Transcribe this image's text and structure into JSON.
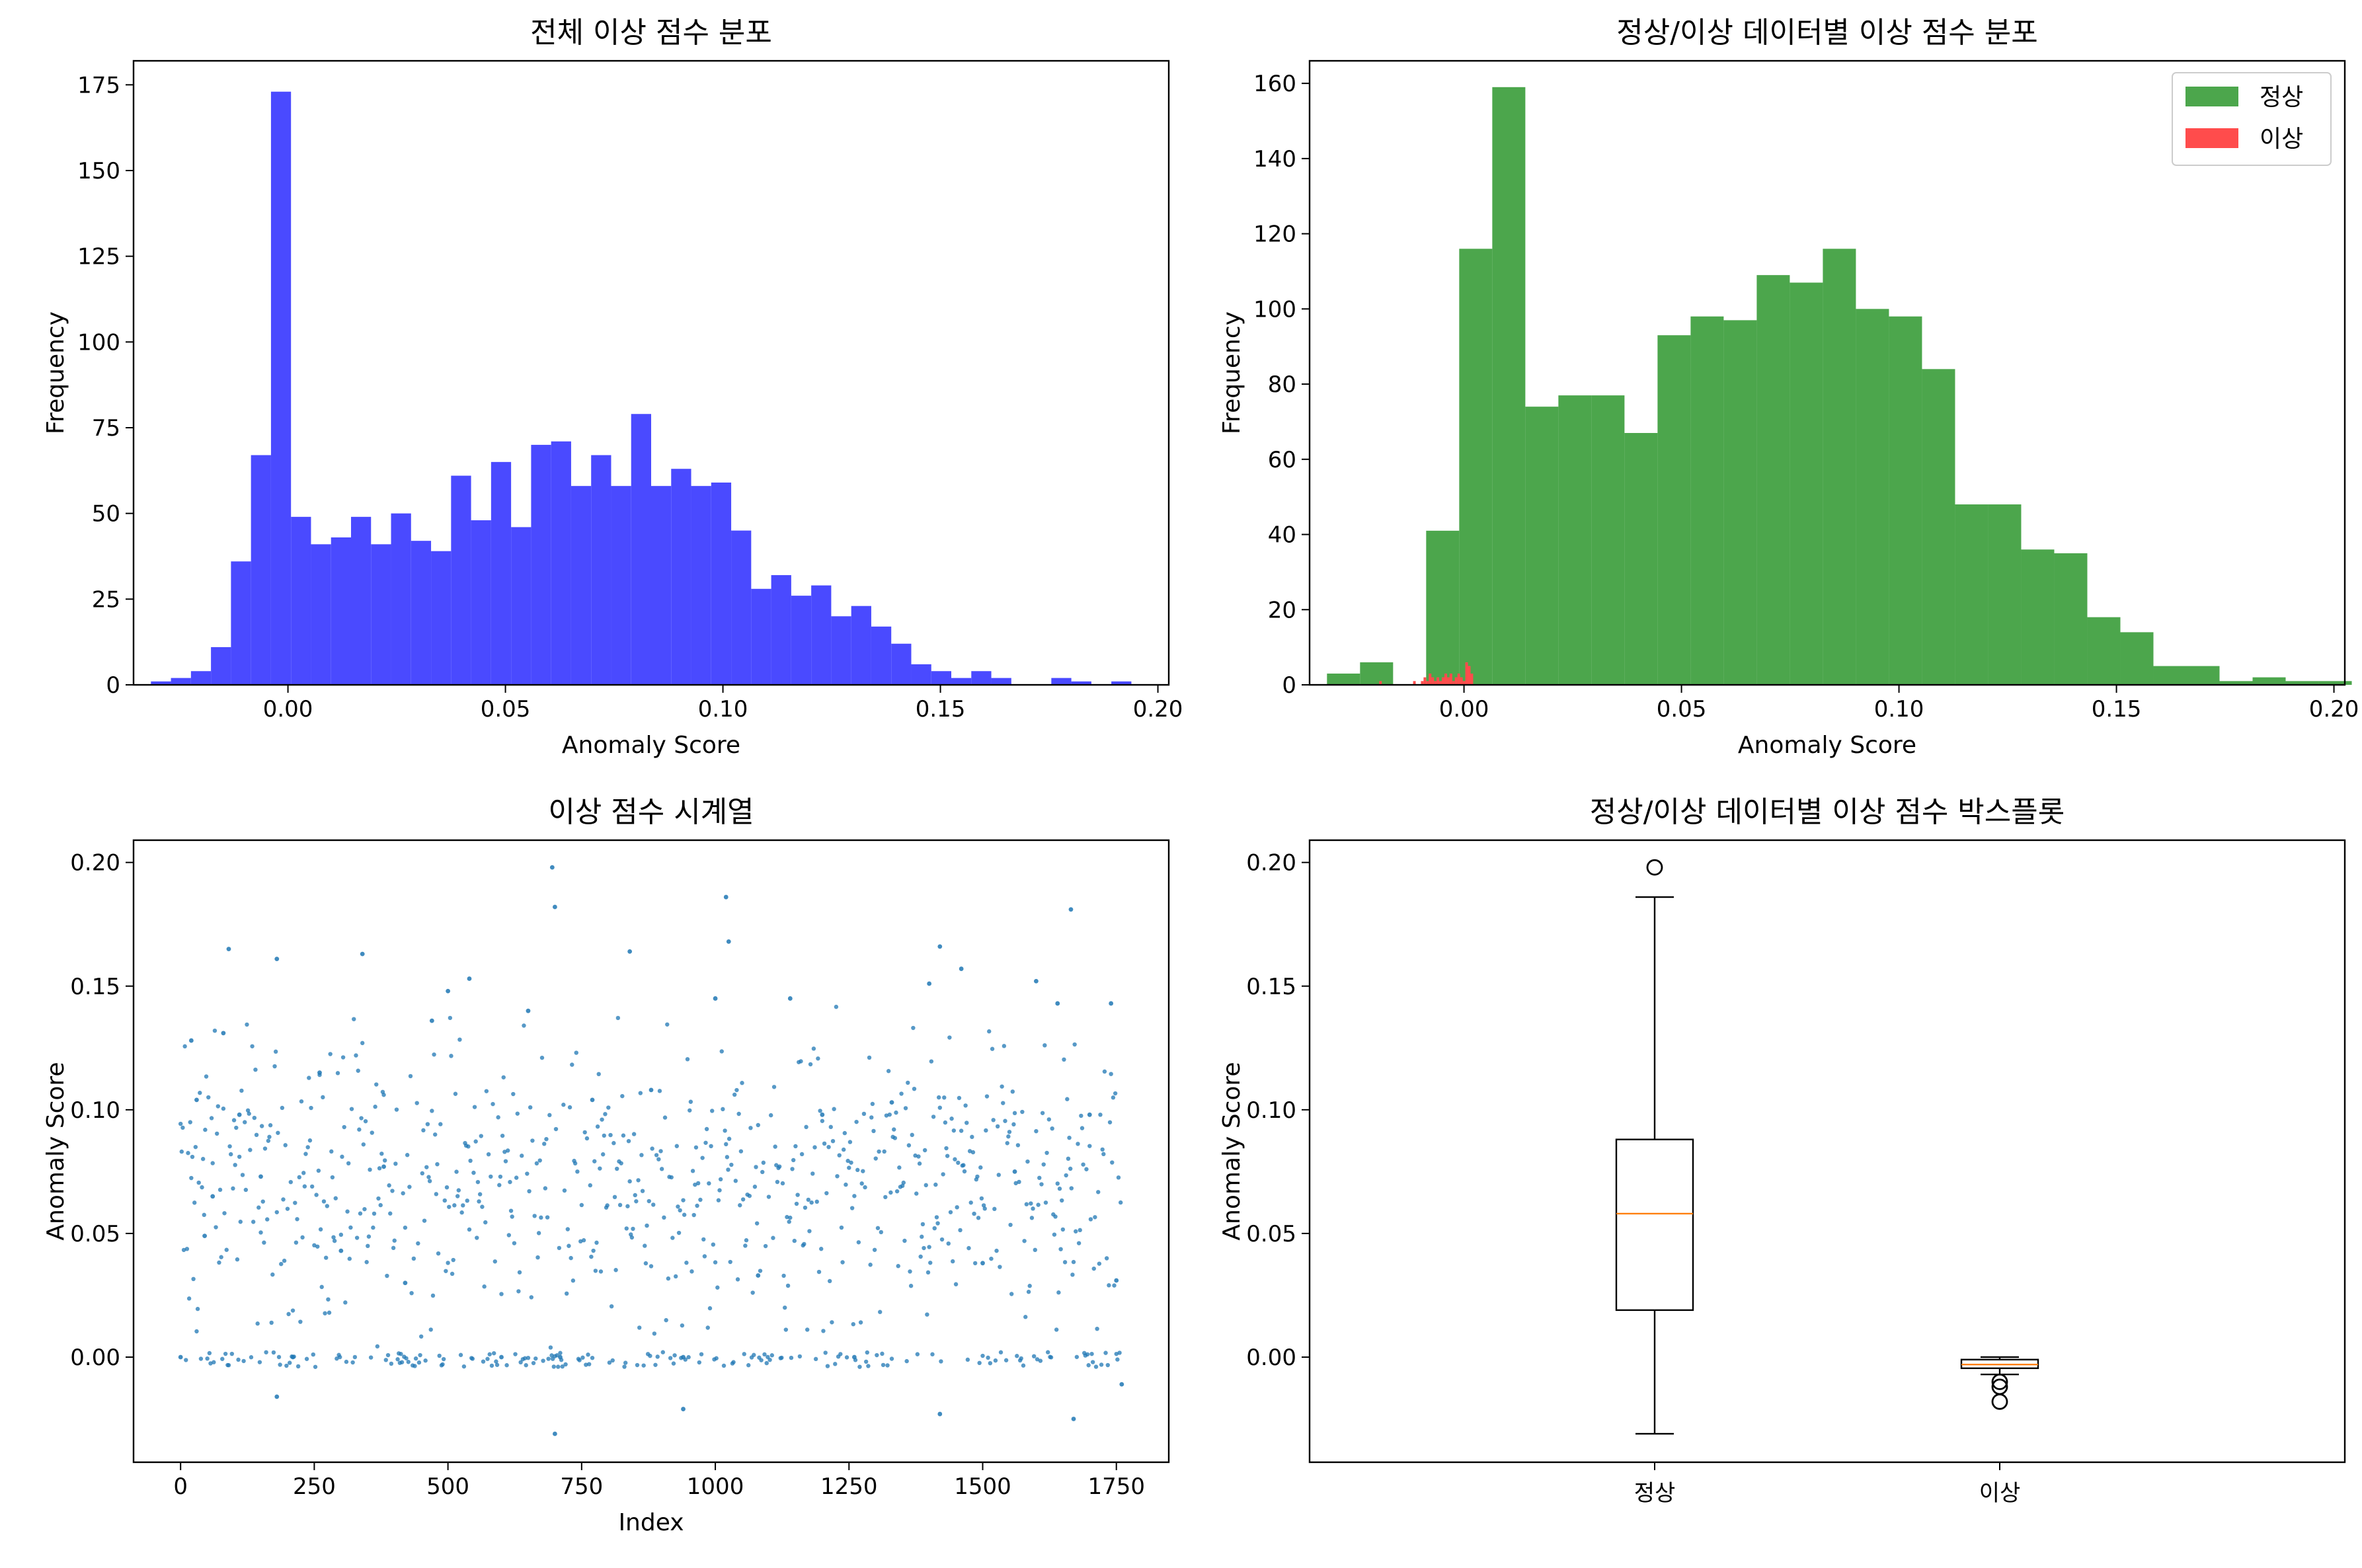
{
  "chart_data": [
    {
      "type": "bar",
      "title": "전체 이상 점수 분포",
      "xlabel": "Anomaly Score",
      "ylabel": "Frequency",
      "xlim": [
        -0.0355,
        0.2025
      ],
      "ylim": [
        0,
        182
      ],
      "xticks": [
        0.0,
        0.05,
        0.1,
        0.15,
        0.2
      ],
      "xtick_labels": [
        "0.00",
        "0.05",
        "0.10",
        "0.15",
        "0.20"
      ],
      "yticks": [
        0,
        25,
        50,
        75,
        100,
        125,
        150,
        175
      ],
      "ytick_labels": [
        "0",
        "25",
        "50",
        "75",
        "100",
        "125",
        "150",
        "175"
      ],
      "grid": false,
      "series": [
        {
          "color": "#4a4aff",
          "bin_start": -0.0315,
          "bin_width": 0.0046,
          "counts": [
            1,
            2,
            4,
            11,
            36,
            67,
            173,
            49,
            41,
            43,
            49,
            41,
            50,
            42,
            39,
            61,
            48,
            65,
            46,
            70,
            71,
            58,
            67,
            58,
            79,
            58,
            63,
            58,
            59,
            45,
            28,
            32,
            26,
            29,
            20,
            23,
            17,
            12,
            6,
            4,
            2,
            4,
            2,
            0,
            0,
            2,
            1,
            0,
            1
          ]
        }
      ]
    },
    {
      "type": "bar",
      "title": "정상/이상 데이터별 이상 점수 분포",
      "xlabel": "Anomaly Score",
      "ylabel": "Frequency",
      "xlim": [
        -0.0355,
        0.2025
      ],
      "ylim": [
        0,
        166
      ],
      "xticks": [
        0.0,
        0.05,
        0.1,
        0.15,
        0.2
      ],
      "xtick_labels": [
        "0.00",
        "0.05",
        "0.10",
        "0.15",
        "0.20"
      ],
      "yticks": [
        0,
        20,
        40,
        60,
        80,
        100,
        120,
        140,
        160
      ],
      "ytick_labels": [
        "0",
        "20",
        "40",
        "60",
        "80",
        "100",
        "120",
        "140",
        "160"
      ],
      "grid": false,
      "legend": "top-right",
      "series": [
        {
          "name": "정상",
          "color": "#4ca64c",
          "bin_start": -0.0315,
          "bin_width": 0.0076,
          "counts": [
            3,
            6,
            0,
            41,
            116,
            159,
            74,
            77,
            77,
            67,
            93,
            98,
            97,
            109,
            107,
            116,
            100,
            98,
            84,
            48,
            48,
            36,
            35,
            18,
            14,
            5,
            5,
            1,
            2,
            1,
            1
          ]
        },
        {
          "name": "이상",
          "color": "#ff4c4c",
          "bin_start": -0.0195,
          "bin_width": 0.0006,
          "counts": [
            1,
            0,
            0,
            0,
            0,
            0,
            0,
            0,
            0,
            0,
            0,
            0,
            0,
            1,
            0,
            0,
            1,
            2,
            1,
            3,
            2,
            1,
            2,
            1,
            2,
            3,
            2,
            3,
            1,
            2,
            3,
            2,
            1,
            6,
            5,
            3
          ]
        }
      ]
    },
    {
      "type": "scatter",
      "title": "이상 점수 시계열",
      "xlabel": "Index",
      "ylabel": "Anomaly Score",
      "xlim": [
        -88,
        1848
      ],
      "ylim": [
        -0.0425,
        0.209
      ],
      "xticks": [
        0,
        250,
        500,
        750,
        1000,
        1250,
        1500,
        1750
      ],
      "xtick_labels": [
        "0",
        "250",
        "500",
        "750",
        "1000",
        "1250",
        "1500",
        "1750"
      ],
      "yticks": [
        0.0,
        0.05,
        0.1,
        0.15,
        0.2
      ],
      "ytick_labels": [
        "0.00",
        "0.05",
        "0.10",
        "0.15",
        "0.20"
      ],
      "grid": false,
      "color": "#1f77b4",
      "n_points": 1760,
      "points": [
        [
          0,
          0.0
        ],
        [
          20,
          0.128
        ],
        [
          30,
          0.104
        ],
        [
          45,
          0.049
        ],
        [
          60,
          0.065
        ],
        [
          80,
          0.131
        ],
        [
          90,
          0.165
        ],
        [
          110,
          0.098
        ],
        [
          150,
          0.073
        ],
        [
          180,
          0.161
        ],
        [
          210,
          0.0
        ],
        [
          260,
          0.115
        ],
        [
          300,
          0.043
        ],
        [
          340,
          0.163
        ],
        [
          380,
          0.077
        ],
        [
          420,
          0.03
        ],
        [
          470,
          0.136
        ],
        [
          500,
          0.148
        ],
        [
          540,
          0.153
        ],
        [
          600,
          0.0
        ],
        [
          650,
          0.14
        ],
        [
          695,
          0.198
        ],
        [
          700,
          0.182
        ],
        [
          710,
          0.0
        ],
        [
          770,
          0.104
        ],
        [
          840,
          0.164
        ],
        [
          880,
          0.108
        ],
        [
          940,
          0.0
        ],
        [
          1000,
          0.145
        ],
        [
          1020,
          0.186
        ],
        [
          1025,
          0.168
        ],
        [
          1080,
          0.033
        ],
        [
          1140,
          0.145
        ],
        [
          1200,
          0.098
        ],
        [
          1260,
          0.0
        ],
        [
          1330,
          0.103
        ],
        [
          1400,
          0.151
        ],
        [
          1420,
          0.166
        ],
        [
          1460,
          0.157
        ],
        [
          1500,
          0.038
        ],
        [
          1560,
          0.075
        ],
        [
          1600,
          0.152
        ],
        [
          1640,
          0.143
        ],
        [
          1665,
          0.181
        ],
        [
          1700,
          0.098
        ],
        [
          1740,
          0.143
        ],
        [
          1750,
          0.031
        ],
        [
          700,
          -0.031
        ],
        [
          1420,
          -0.023
        ],
        [
          1670,
          -0.025
        ],
        [
          940,
          -0.021
        ],
        [
          180,
          -0.016
        ],
        [
          1760,
          -0.011
        ]
      ]
    },
    {
      "type": "box",
      "title": "정상/이상 데이터별 이상 점수 박스플롯",
      "ylabel": "Anomaly Score",
      "categories": [
        "정상",
        "이상"
      ],
      "ylim": [
        -0.0425,
        0.209
      ],
      "yticks": [
        0.0,
        0.05,
        0.1,
        0.15,
        0.2
      ],
      "ytick_labels": [
        "0.00",
        "0.05",
        "0.10",
        "0.15",
        "0.20"
      ],
      "grid": false,
      "median_color": "#ff7f0e",
      "series": [
        {
          "name": "정상",
          "whisker_low": -0.031,
          "q1": 0.019,
          "median": 0.058,
          "q3": 0.088,
          "whisker_high": 0.186,
          "fliers": [
            0.198
          ]
        },
        {
          "name": "이상",
          "whisker_low": -0.007,
          "q1": -0.0045,
          "median": -0.003,
          "q3": -0.001,
          "whisker_high": 0.0,
          "fliers": [
            -0.01,
            -0.012,
            -0.018
          ]
        }
      ]
    }
  ]
}
